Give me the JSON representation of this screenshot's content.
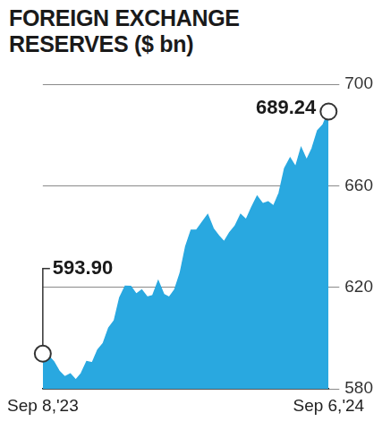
{
  "chart_data": {
    "type": "area",
    "title": "FOREIGN EXCHANGE RESERVES ($ bn)",
    "categories": [
      "Sep 8,'23",
      null,
      null,
      null,
      null,
      null,
      null,
      null,
      null,
      null,
      null,
      null,
      null,
      null,
      null,
      null,
      null,
      null,
      null,
      null,
      null,
      null,
      null,
      null,
      null,
      null,
      null,
      null,
      null,
      null,
      null,
      null,
      null,
      null,
      null,
      null,
      null,
      null,
      null,
      null,
      null,
      null,
      null,
      null,
      null,
      null,
      null,
      null,
      null,
      null,
      null,
      null,
      "Sep 6,'24"
    ],
    "values": [
      593.9,
      593.04,
      590.7,
      586.91,
      584.74,
      585.9,
      583.53,
      586.11,
      590.78,
      590.32,
      595.4,
      597.94,
      604.04,
      606.86,
      615.97,
      620.44,
      620.4,
      617.3,
      618.94,
      616.14,
      616.73,
      622.47,
      617.23,
      616.1,
      619.07,
      625.63,
      636.1,
      642.49,
      642.63,
      645.58,
      648.56,
      643.16,
      640.33,
      637.92,
      641.59,
      644.15,
      648.7,
      646.67,
      651.51,
      655.82,
      652.9,
      653.71,
      652.0,
      657.16,
      666.85,
      670.86,
      667.39,
      674.92,
      670.12,
      674.66,
      681.69,
      683.99,
      689.24
    ],
    "color": "#29a8e0",
    "ylim": [
      580,
      700
    ],
    "yticks": [
      580,
      620,
      660,
      700
    ],
    "grid": true,
    "annotations": [
      {
        "category": "Sep 8,'23",
        "value": 593.9,
        "label": "593.90"
      },
      {
        "category": "Sep 6,'24",
        "value": 689.24,
        "label": "689.24"
      }
    ]
  }
}
